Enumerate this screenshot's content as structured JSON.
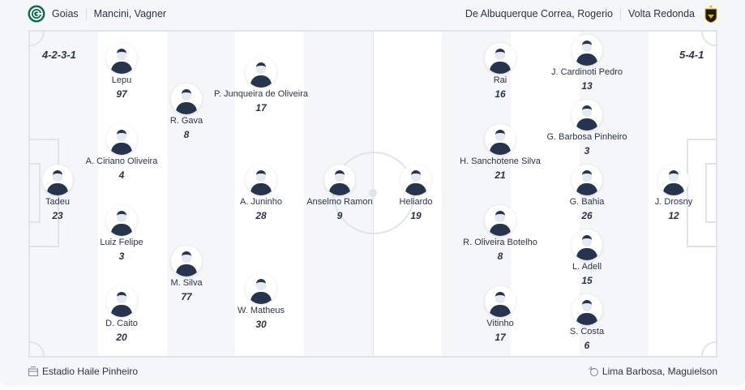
{
  "home": {
    "team": "Goias",
    "coach": "Mancini, Vagner",
    "formation": "4-2-3-1",
    "color": "#0b6b4f",
    "players": [
      {
        "name": "Tadeu",
        "number": "23"
      },
      {
        "name": "Lepu",
        "number": "97"
      },
      {
        "name": "A. Ciriano Oliveira",
        "number": "4"
      },
      {
        "name": "Luiz Felipe",
        "number": "3"
      },
      {
        "name": "D. Caito",
        "number": "20"
      },
      {
        "name": "R. Gava",
        "number": "8"
      },
      {
        "name": "M. Silva",
        "number": "77"
      },
      {
        "name": "P. Junqueira de Oliveira",
        "number": "17"
      },
      {
        "name": "A. Juninho",
        "number": "28"
      },
      {
        "name": "W. Matheus",
        "number": "30"
      },
      {
        "name": "Anselmo Ramon",
        "number": "9"
      }
    ]
  },
  "away": {
    "team": "Volta Redonda",
    "coach": "De Albuquerque Correa, Rogerio",
    "formation": "5-4-1",
    "color": "#1b1b1b",
    "players": [
      {
        "name": "Heliardo",
        "number": "19"
      },
      {
        "name": "Rai",
        "number": "16"
      },
      {
        "name": "H. Sanchotene Silva",
        "number": "21"
      },
      {
        "name": "R. Oliveira Botelho",
        "number": "8"
      },
      {
        "name": "Vitinho",
        "number": "17"
      },
      {
        "name": "J. Cardinoti Pedro",
        "number": "13"
      },
      {
        "name": "G. Barbosa Pinheiro",
        "number": "3"
      },
      {
        "name": "G. Bahia",
        "number": "26"
      },
      {
        "name": "L. Adell",
        "number": "15"
      },
      {
        "name": "S. Costa",
        "number": "6"
      },
      {
        "name": "J. Drosny",
        "number": "12"
      }
    ]
  },
  "footer": {
    "stadium": "Estadio Haile Pinheiro",
    "referee": "Lima Barbosa, Maguielson",
    "stadium_icon": "stadium-icon",
    "referee_icon": "whistle-icon"
  }
}
